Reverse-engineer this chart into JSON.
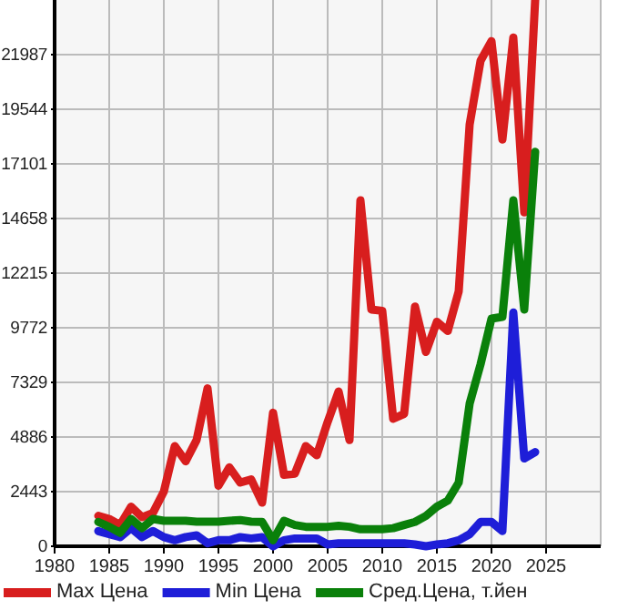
{
  "chart_data": {
    "type": "line",
    "x": [
      1984,
      1985,
      1986,
      1987,
      1988,
      1989,
      1990,
      1991,
      1992,
      1993,
      1994,
      1995,
      1996,
      1997,
      1998,
      1999,
      2000,
      2001,
      2002,
      2003,
      2004,
      2005,
      2006,
      2007,
      2008,
      2009,
      2010,
      2011,
      2012,
      2013,
      2014,
      2015,
      2016,
      2017,
      2018,
      2019,
      2020,
      2021,
      2022,
      2023,
      2024
    ],
    "series": [
      {
        "name": "Max Цена",
        "color": "#d81e1e",
        "values": [
          1360,
          1220,
          950,
          1770,
          1300,
          1490,
          2443,
          4480,
          3800,
          4750,
          7060,
          2710,
          3530,
          2850,
          2990,
          1950,
          5970,
          3200,
          3250,
          4480,
          4070,
          5560,
          6920,
          4750,
          15470,
          10590,
          10530,
          5700,
          5920,
          10720,
          8690,
          10040,
          9630,
          11400,
          18860,
          21710,
          22590,
          18190,
          22750,
          14930,
          24430
        ]
      },
      {
        "name": "Min Цена",
        "color": "#1e1ed8",
        "values": [
          680,
          540,
          410,
          810,
          410,
          680,
          410,
          270,
          410,
          490,
          135,
          270,
          270,
          410,
          350,
          410,
          0,
          270,
          350,
          350,
          350,
          80,
          135,
          135,
          135,
          135,
          135,
          135,
          135,
          80,
          0,
          80,
          135,
          270,
          540,
          1090,
          1090,
          680,
          10450,
          3930,
          4210
        ]
      },
      {
        "name": "Сред.Цена, т.йен",
        "color": "#0a800a",
        "values": [
          1090,
          870,
          600,
          1220,
          810,
          1220,
          1140,
          1140,
          1140,
          1100,
          1100,
          1100,
          1140,
          1170,
          1100,
          1090,
          270,
          1140,
          950,
          870,
          870,
          870,
          920,
          870,
          760,
          760,
          760,
          810,
          950,
          1090,
          1360,
          1770,
          2040,
          2850,
          6380,
          8140,
          10180,
          10260,
          15470,
          10590,
          17640
        ]
      }
    ],
    "xlim": [
      1980,
      2030
    ],
    "xticks": [
      1980,
      1985,
      1990,
      1995,
      2000,
      2005,
      2010,
      2015,
      2020,
      2025
    ],
    "ylim": [
      0,
      24430
    ],
    "yticks": [
      0,
      2443,
      4886,
      7329,
      9772,
      12215,
      14658,
      17101,
      19544,
      21987
    ],
    "grid": true,
    "legend": "bottom"
  }
}
